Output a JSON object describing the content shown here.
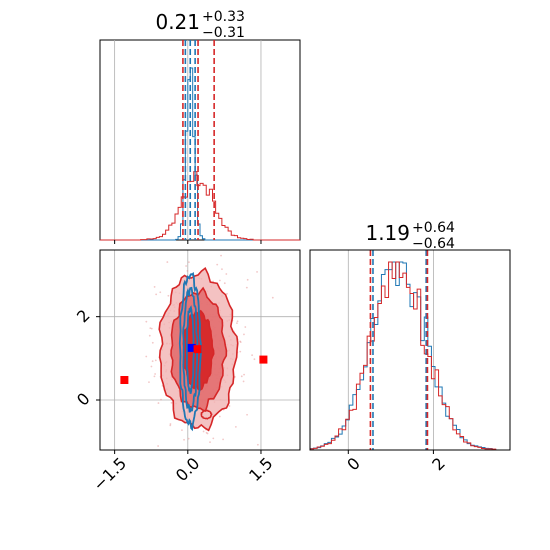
{
  "chart_data": {
    "type": "corner",
    "colors": {
      "blue": "#1f77b4",
      "red": "#d62728",
      "marker_blue": "#0000ff",
      "marker_red": "#ff0000",
      "grid": "#b0b0b0"
    },
    "panels": [
      {
        "id": "hist_x",
        "type": "histogram",
        "title": {
          "median": "0.21",
          "plus": "+0.33",
          "minus": "−0.31"
        },
        "xlim": [
          -1.8,
          2.3
        ],
        "series": [
          {
            "name": "",
            "color": "blue",
            "center": 0.05,
            "sigma": 0.08,
            "peak": 1.0
          },
          {
            "name": "",
            "color": "red",
            "center": 0.21,
            "sigma": 0.32,
            "peak": 0.33
          }
        ],
        "quantile_lines": [
          {
            "color": "blue",
            "values": [
              -0.05,
              0.05,
              0.15
            ]
          },
          {
            "color": "red",
            "values": [
              -0.1,
              0.21,
              0.54
            ]
          }
        ],
        "xticks": [
          -1.5,
          0.0,
          1.5
        ]
      },
      {
        "id": "scatter_xy",
        "type": "contour",
        "xlim": [
          -1.8,
          2.3
        ],
        "ylim": [
          -1.2,
          3.6
        ],
        "xticks": [
          -1.5,
          0.0,
          1.5
        ],
        "xtick_labels": [
          "−1.5",
          "0.0",
          "1.5"
        ],
        "yticks": [
          0,
          2
        ],
        "ytick_labels": [
          "0",
          "2"
        ],
        "red_contours": [
          {
            "cx": 0.21,
            "cy": 1.19,
            "rx": 0.3,
            "ry": 0.92
          },
          {
            "cx": 0.21,
            "cy": 1.19,
            "rx": 0.55,
            "ry": 1.4
          },
          {
            "cx": 0.21,
            "cy": 1.19,
            "rx": 0.78,
            "ry": 1.85
          }
        ],
        "blue_contours": [
          {
            "cx": 0.05,
            "cy": 1.2,
            "rx": 0.07,
            "ry": 1.0
          },
          {
            "cx": 0.05,
            "cy": 1.2,
            "rx": 0.14,
            "ry": 1.45
          },
          {
            "cx": 0.05,
            "cy": 1.2,
            "rx": 0.21,
            "ry": 1.8
          }
        ],
        "markers": [
          {
            "color": "marker_blue",
            "x": 0.08,
            "y": 1.25
          },
          {
            "color": "marker_red",
            "x": 0.2,
            "y": 1.22
          },
          {
            "color": "marker_red",
            "x": -1.3,
            "y": 0.48
          },
          {
            "color": "marker_red",
            "x": 1.55,
            "y": 0.97
          }
        ]
      },
      {
        "id": "hist_y",
        "type": "histogram",
        "title": {
          "median": "1.19",
          "plus": "+0.64",
          "minus": "−0.64"
        },
        "xlim": [
          -0.9,
          3.8
        ],
        "series": [
          {
            "name": "",
            "color": "blue",
            "center": 1.19,
            "sigma": 0.64,
            "peak": 1.0
          },
          {
            "name": "",
            "color": "red",
            "center": 1.19,
            "sigma": 0.64,
            "peak": 0.96
          }
        ],
        "quantile_lines": [
          {
            "color": "blue",
            "values": [
              0.58,
              1.83
            ]
          },
          {
            "color": "red",
            "values": [
              0.52,
              1.86
            ]
          }
        ],
        "xticks": [
          0,
          2
        ],
        "xtick_labels": [
          "0",
          "2"
        ]
      }
    ]
  }
}
